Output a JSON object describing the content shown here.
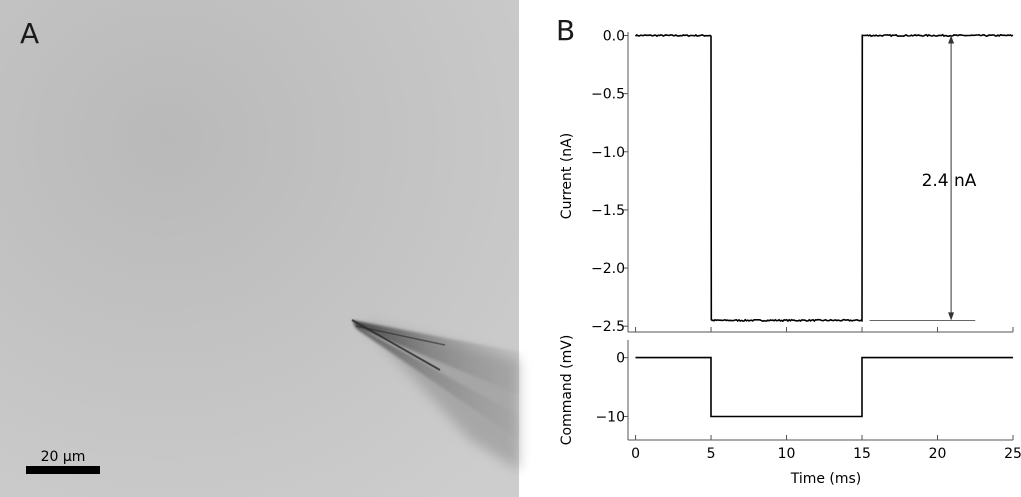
{
  "panels": {
    "a": {
      "label": "A",
      "scale_bar_label": "20 µm"
    },
    "b": {
      "label": "B"
    }
  },
  "chart_data": [
    {
      "type": "line",
      "ylabel": "Current (nA)",
      "xlim": [
        -0.5,
        25
      ],
      "ylim": [
        -2.55,
        0.03
      ],
      "yticks": [
        0.0,
        -0.5,
        -1.0,
        -1.5,
        -2.0,
        -2.5
      ],
      "ytick_labels": [
        "0.0",
        "−0.5",
        "−1.0",
        "−1.5",
        "−2.0",
        "−2.5"
      ],
      "xticks": [
        0,
        5,
        10,
        15,
        20,
        25
      ],
      "grid": false,
      "series": [
        {
          "x": [
            0,
            5,
            5.02,
            15,
            15.02,
            25
          ],
          "y": [
            0.0,
            0.0,
            -2.45,
            -2.45,
            0.0,
            0.0
          ]
        }
      ],
      "annotation": {
        "text": "2.4 nA",
        "x": 20.9,
        "from": 0.0,
        "to": -2.45,
        "baseline_x": [
          15.5,
          22.5
        ]
      }
    },
    {
      "type": "line",
      "xlabel": "Time (ms)",
      "ylabel": "Command (mV)",
      "xlim": [
        -0.5,
        25
      ],
      "ylim": [
        -14,
        3
      ],
      "yticks": [
        0,
        -10
      ],
      "ytick_labels": [
        "0",
        "−10"
      ],
      "xticks": [
        0,
        5,
        10,
        15,
        20,
        25
      ],
      "xtick_labels": [
        "0",
        "5",
        "10",
        "15",
        "20",
        "25"
      ],
      "grid": false,
      "series": [
        {
          "x": [
            0,
            5,
            5,
            15,
            15,
            25
          ],
          "y": [
            0,
            0,
            -10,
            -10,
            0,
            0
          ]
        }
      ]
    }
  ]
}
